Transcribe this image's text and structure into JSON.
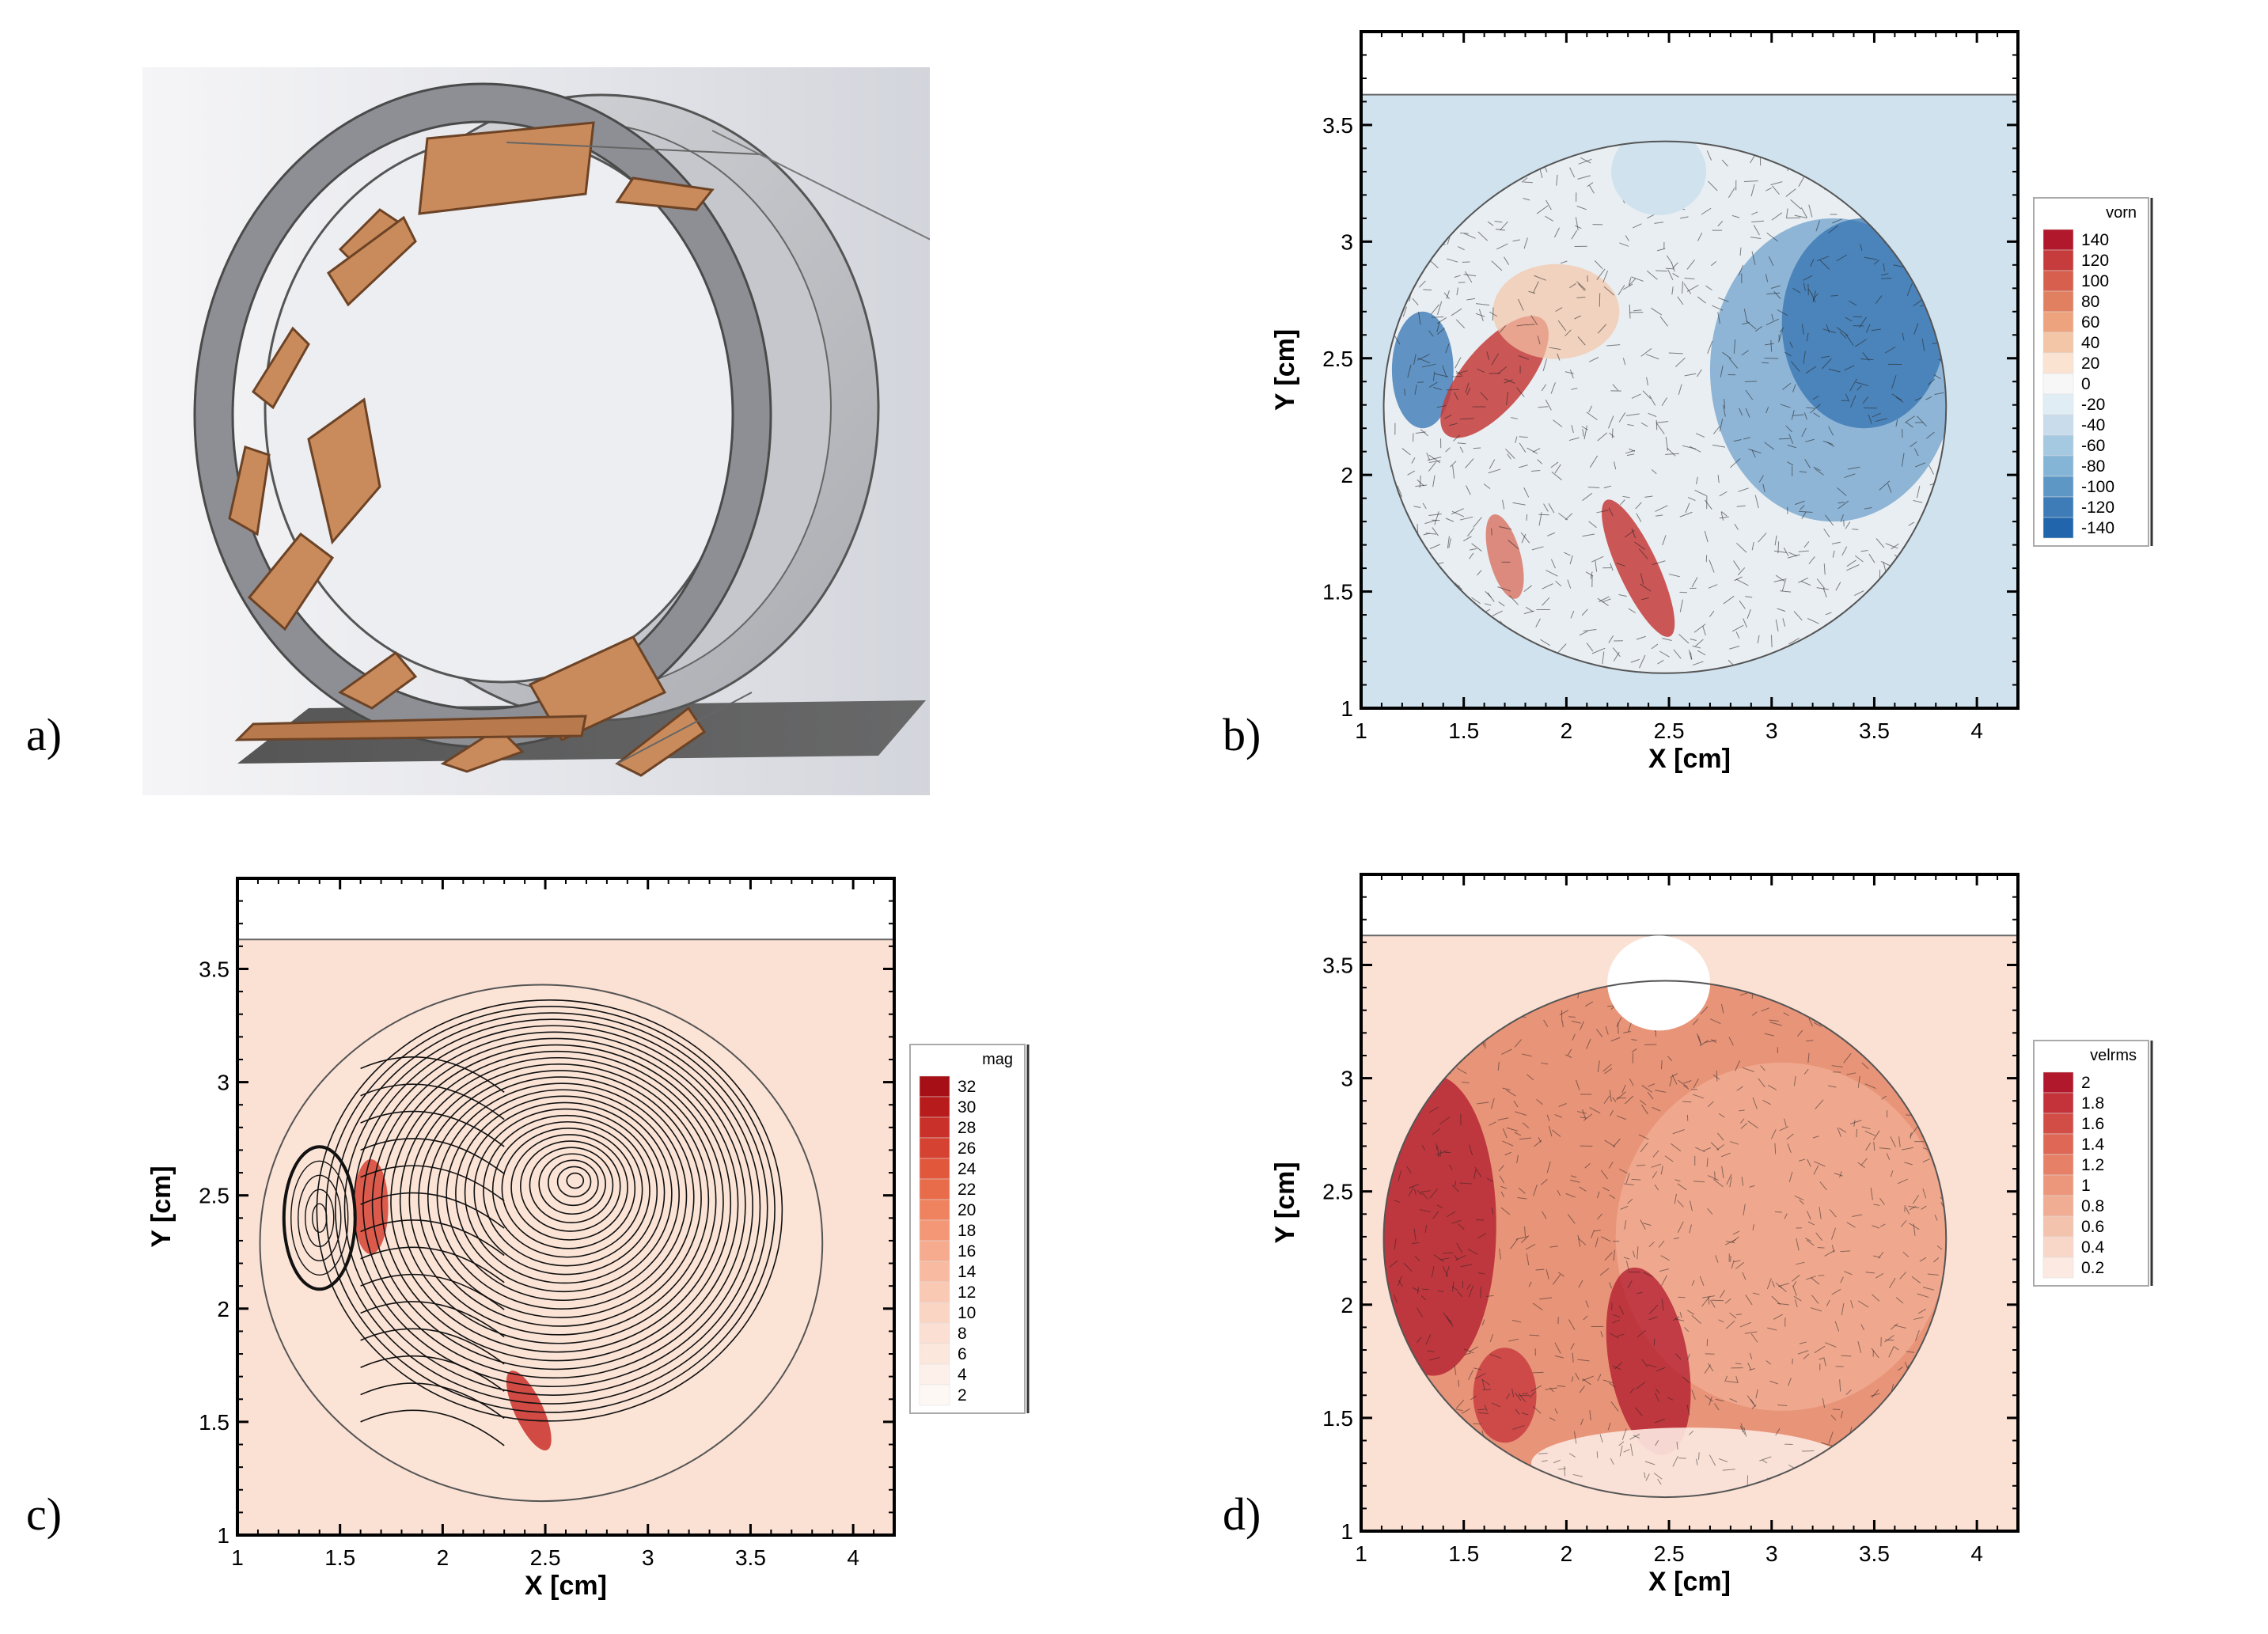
{
  "figure": {
    "panels": [
      {
        "letter": "a)"
      },
      {
        "letter": "b)"
      },
      {
        "letter": "c)"
      },
      {
        "letter": "d)"
      }
    ]
  },
  "chart_data": [
    {
      "type": "heatmap",
      "panel": "b",
      "title": "",
      "xlabel": "X [cm]",
      "ylabel": "Y [cm]",
      "xlim": [
        1,
        4.2
      ],
      "ylim": [
        1,
        3.9
      ],
      "x_ticks": [
        "1",
        "1.5",
        "2",
        "2.5",
        "3",
        "3.5",
        "4"
      ],
      "y_ticks": [
        "1",
        "1.5",
        "2",
        "2.5",
        "3",
        "3.5"
      ],
      "colorbar": {
        "label": "vorn",
        "levels": [
          "140",
          "120",
          "100",
          "80",
          "60",
          "40",
          "20",
          "0",
          "-20",
          "-40",
          "-60",
          "-80",
          "-100",
          "-120",
          "-140"
        ],
        "colors": [
          "#b2182b",
          "#c63b3b",
          "#d6604d",
          "#e08060",
          "#eda47e",
          "#f4c6a8",
          "#fbe3d2",
          "#f7f7f7",
          "#e1edf4",
          "#c8dceb",
          "#a5c9e0",
          "#84b4d6",
          "#5d97c6",
          "#3d7cb7",
          "#2166ac"
        ]
      },
      "background_color": "#cfe2ee",
      "grid": false
    },
    {
      "type": "heatmap",
      "panel": "c",
      "title": "",
      "xlabel": "X [cm]",
      "ylabel": "Y [cm]",
      "xlim": [
        1,
        4.2
      ],
      "ylim": [
        1,
        3.9
      ],
      "x_ticks": [
        "1",
        "1.5",
        "2",
        "2.5",
        "3",
        "3.5",
        "4"
      ],
      "y_ticks": [
        "1",
        "1.5",
        "2",
        "2.5",
        "3",
        "3.5"
      ],
      "colorbar": {
        "label": "mag",
        "levels": [
          "32",
          "30",
          "28",
          "26",
          "24",
          "22",
          "20",
          "18",
          "16",
          "14",
          "12",
          "10",
          "8",
          "6",
          "4",
          "2"
        ],
        "colors": [
          "#a50f15",
          "#b81b1b",
          "#c9302a",
          "#d54232",
          "#e0573c",
          "#e86b4a",
          "#ef825f",
          "#f39777",
          "#f6ab8f",
          "#f8bba2",
          "#f9c9b4",
          "#fad5c4",
          "#fbdfd2",
          "#fce7dd",
          "#fdf0ea",
          "#fef8f5"
        ]
      },
      "background_color": "#fbe0d4",
      "grid": false
    },
    {
      "type": "heatmap",
      "panel": "d",
      "title": "",
      "xlabel": "X [cm]",
      "ylabel": "Y [cm]",
      "xlim": [
        1,
        4.2
      ],
      "ylim": [
        1,
        3.9
      ],
      "x_ticks": [
        "1",
        "1.5",
        "2",
        "2.5",
        "3",
        "3.5",
        "4"
      ],
      "y_ticks": [
        "1",
        "1.5",
        "2",
        "2.5",
        "3",
        "3.5"
      ],
      "colorbar": {
        "label": "velrms",
        "levels": [
          "2",
          "1.8",
          "1.6",
          "1.4",
          "1.2",
          "1",
          "0.8",
          "0.6",
          "0.4",
          "0.2"
        ],
        "colors": [
          "#b2182b",
          "#c4323a",
          "#d24d46",
          "#de6755",
          "#e68067",
          "#ec977c",
          "#f0ad94",
          "#f4c3ae",
          "#f8d7c9",
          "#fce9e1"
        ]
      },
      "background_color": "#fbe0d4",
      "grid": false
    }
  ]
}
